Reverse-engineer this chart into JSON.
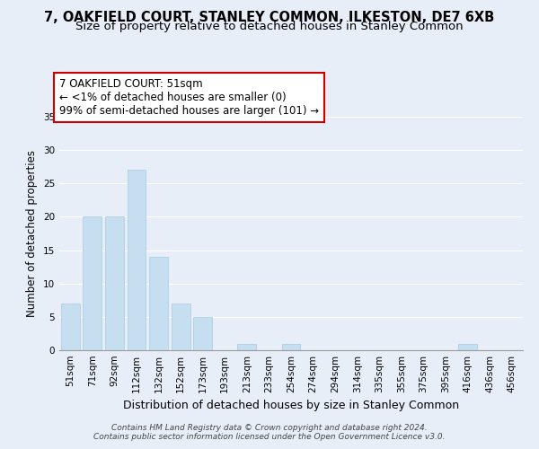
{
  "title": "7, OAKFIELD COURT, STANLEY COMMON, ILKESTON, DE7 6XB",
  "subtitle": "Size of property relative to detached houses in Stanley Common",
  "xlabel": "Distribution of detached houses by size in Stanley Common",
  "ylabel": "Number of detached properties",
  "bar_labels": [
    "51sqm",
    "71sqm",
    "92sqm",
    "112sqm",
    "132sqm",
    "152sqm",
    "173sqm",
    "193sqm",
    "213sqm",
    "233sqm",
    "254sqm",
    "274sqm",
    "294sqm",
    "314sqm",
    "335sqm",
    "355sqm",
    "375sqm",
    "395sqm",
    "416sqm",
    "436sqm",
    "456sqm"
  ],
  "bar_values": [
    7,
    20,
    20,
    27,
    14,
    7,
    5,
    0,
    1,
    0,
    1,
    0,
    0,
    0,
    0,
    0,
    0,
    0,
    1,
    0,
    0
  ],
  "bar_color": "#c5dff0",
  "bar_edge_color": "#c5dff0",
  "ylim": [
    0,
    35
  ],
  "yticks": [
    0,
    5,
    10,
    15,
    20,
    25,
    30,
    35
  ],
  "annotation_line1": "7 OAKFIELD COURT: 51sqm",
  "annotation_line2": "← <1% of detached houses are smaller (0)",
  "annotation_line3": "99% of semi-detached houses are larger (101) →",
  "footer_line1": "Contains HM Land Registry data © Crown copyright and database right 2024.",
  "footer_line2": "Contains public sector information licensed under the Open Government Licence v3.0.",
  "background_color": "#e8eef8",
  "grid_color": "#ffffff",
  "title_fontsize": 10.5,
  "subtitle_fontsize": 9.5,
  "xlabel_fontsize": 9,
  "ylabel_fontsize": 8.5,
  "tick_fontsize": 7.5,
  "footer_fontsize": 6.5,
  "ann_fontsize": 8.5
}
